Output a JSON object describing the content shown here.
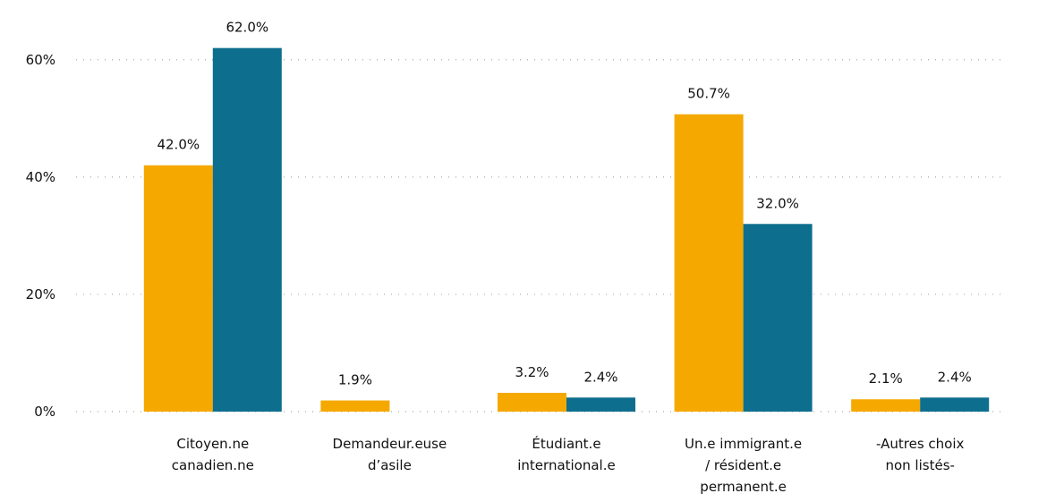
{
  "chart_data": {
    "type": "bar",
    "categories": [
      [
        "Citoyen.ne",
        "canadien.ne"
      ],
      [
        "Demandeur.euse",
        "d’asile"
      ],
      [
        "Étudiant.e",
        "international.e"
      ],
      [
        "Un.e immigrant.e",
        "/ résident.e",
        "permanent.e"
      ],
      [
        "-Autres choix",
        "non listés-"
      ]
    ],
    "series": [
      {
        "color": "#f5a800",
        "values": [
          42.0,
          1.9,
          3.2,
          50.7,
          2.1
        ],
        "value_labels": [
          "42.0%",
          "1.9%",
          "3.2%",
          "50.7%",
          "2.1%"
        ]
      },
      {
        "color": "#0e6e8e",
        "values": [
          62.0,
          null,
          2.4,
          32.0,
          2.4
        ],
        "value_labels": [
          "62.0%",
          null,
          "2.4%",
          "32.0%",
          "2.4%"
        ]
      }
    ],
    "ylim": [
      0,
      65
    ],
    "yticks": [
      {
        "value": 0,
        "label": "0%"
      },
      {
        "value": 20,
        "label": "20%"
      },
      {
        "value": 40,
        "label": "40%"
      },
      {
        "value": 60,
        "label": "60%"
      }
    ],
    "grid": true
  }
}
